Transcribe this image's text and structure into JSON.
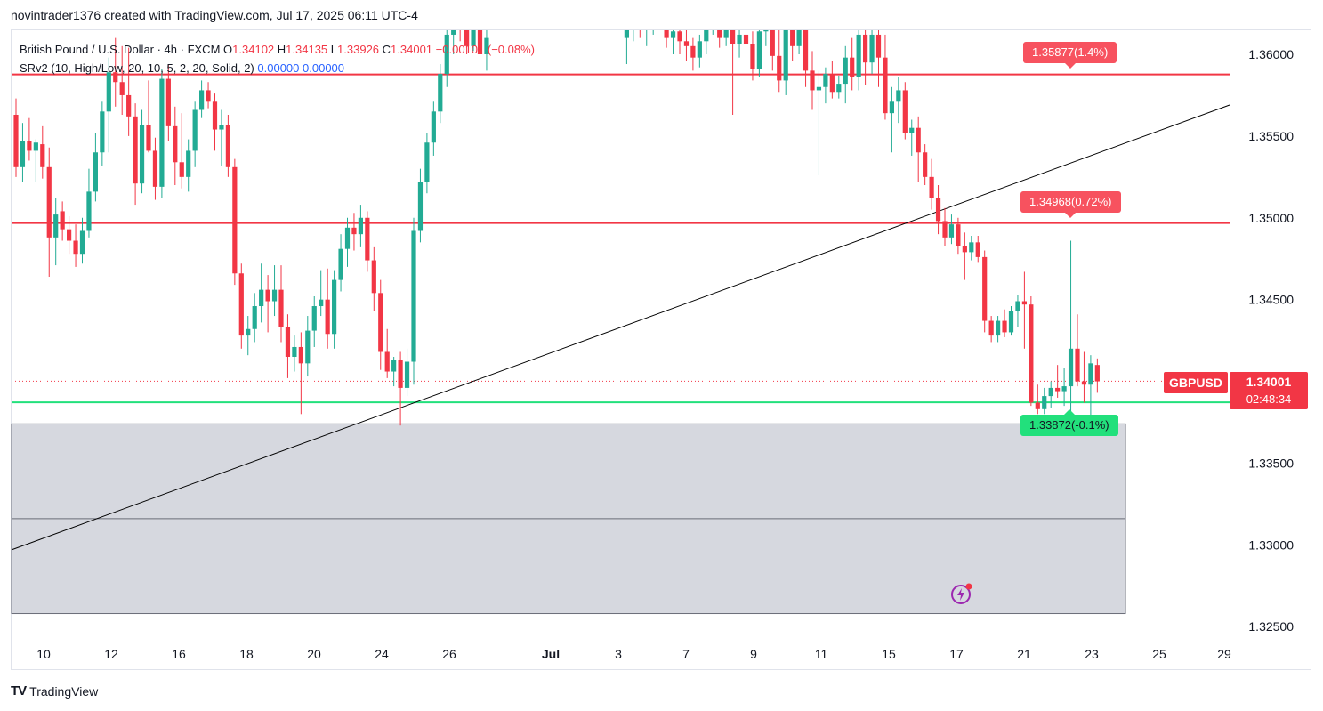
{
  "header": {
    "author_line": "novintrader1376 created with TradingView.com, Jul 17, 2025 06:11 UTC-4"
  },
  "legend": {
    "symbol_line": "British Pound / U.S. Dollar · 4h · FXCM",
    "o_label": "O",
    "o_value": "1.34102",
    "h_label": "H",
    "h_value": "1.34135",
    "l_label": "L",
    "l_value": "1.33926",
    "c_label": "C",
    "c_value": "1.34001",
    "change": "−0.00101 (−0.08%)",
    "indicator_name": "SRv2 (10, High/Low, 20, 10, 5, 2, 20, Solid, 2)",
    "indicator_val1": "0.00000",
    "indicator_val2": "0.00000"
  },
  "tags": {
    "upper": "1.35877(1.4%)",
    "middle": "1.34968(0.72%)",
    "lower": "1.33872(-0.1%)"
  },
  "symbol_tag": "GBPUSD",
  "price_tag": {
    "price": "1.34001",
    "countdown": "02:48:34"
  },
  "footer": {
    "brand": "TradingView",
    "mark": "TV"
  },
  "icons": {
    "alert": "lightning-alert-icon"
  },
  "colors": {
    "up": "#22ab94",
    "down": "#f23645",
    "resistance": "#f23645",
    "support": "#22e07c",
    "trendline": "#000000",
    "zone": "#d1d4dc"
  },
  "chart_data": {
    "type": "candlestick",
    "title": "British Pound / U.S. Dollar · 4h · FXCM",
    "ylim": [
      1.3225,
      1.3616
    ],
    "x_ticks": [
      "10",
      "12",
      "16",
      "18",
      "20",
      "24",
      "26",
      "Jul",
      "3",
      "7",
      "9",
      "11",
      "15",
      "17",
      "21",
      "23",
      "25",
      "29"
    ],
    "y_ticks": [
      "1.36000",
      "1.35500",
      "1.35000",
      "1.34500",
      "1.34000",
      "1.33500",
      "1.33000",
      "1.32500"
    ],
    "horizontal_levels": [
      {
        "price": 1.35877,
        "label": "1.35877(1.4%)",
        "color": "#f23645"
      },
      {
        "price": 1.34968,
        "label": "1.34968(0.72%)",
        "color": "#f23645"
      },
      {
        "price": 1.33872,
        "label": "1.33872(-0.1%)",
        "color": "#22e07c"
      }
    ],
    "zone": {
      "top": 1.3374,
      "bottom": 1.3258
    },
    "trendline": {
      "from": {
        "x": "Jun 9",
        "price": 1.3297
      },
      "to": {
        "x": "Jul 18",
        "price": 1.3569
      }
    },
    "last_price": 1.34001,
    "current_price_line": 1.34001,
    "candles": [
      {
        "o": 1.3563,
        "h": 1.3573,
        "l": 1.3525,
        "c": 1.3531
      },
      {
        "o": 1.3531,
        "h": 1.3558,
        "l": 1.3522,
        "c": 1.3547
      },
      {
        "o": 1.3547,
        "h": 1.3561,
        "l": 1.3535,
        "c": 1.3541
      },
      {
        "o": 1.3541,
        "h": 1.3548,
        "l": 1.3522,
        "c": 1.3546
      },
      {
        "o": 1.3545,
        "h": 1.3556,
        "l": 1.3524,
        "c": 1.3531
      },
      {
        "o": 1.3531,
        "h": 1.3543,
        "l": 1.3464,
        "c": 1.3488
      },
      {
        "o": 1.3488,
        "h": 1.3512,
        "l": 1.3471,
        "c": 1.3502
      },
      {
        "o": 1.3504,
        "h": 1.351,
        "l": 1.3486,
        "c": 1.3493
      },
      {
        "o": 1.3493,
        "h": 1.3501,
        "l": 1.3478,
        "c": 1.3486
      },
      {
        "o": 1.3486,
        "h": 1.3496,
        "l": 1.347,
        "c": 1.3478
      },
      {
        "o": 1.3478,
        "h": 1.35,
        "l": 1.3472,
        "c": 1.3492
      },
      {
        "o": 1.3492,
        "h": 1.353,
        "l": 1.3488,
        "c": 1.3516
      },
      {
        "o": 1.3516,
        "h": 1.3552,
        "l": 1.351,
        "c": 1.354
      },
      {
        "o": 1.354,
        "h": 1.3571,
        "l": 1.3532,
        "c": 1.3565
      },
      {
        "o": 1.3565,
        "h": 1.3598,
        "l": 1.354,
        "c": 1.3589
      },
      {
        "o": 1.3589,
        "h": 1.361,
        "l": 1.3568,
        "c": 1.3583
      },
      {
        "o": 1.3583,
        "h": 1.3605,
        "l": 1.3563,
        "c": 1.3575
      },
      {
        "o": 1.3575,
        "h": 1.3604,
        "l": 1.355,
        "c": 1.3562
      },
      {
        "o": 1.3562,
        "h": 1.357,
        "l": 1.3508,
        "c": 1.3521
      },
      {
        "o": 1.3521,
        "h": 1.3566,
        "l": 1.3515,
        "c": 1.3557
      },
      {
        "o": 1.3557,
        "h": 1.3584,
        "l": 1.354,
        "c": 1.3541
      },
      {
        "o": 1.3541,
        "h": 1.3549,
        "l": 1.3511,
        "c": 1.3519
      },
      {
        "o": 1.3519,
        "h": 1.3591,
        "l": 1.3512,
        "c": 1.3585
      },
      {
        "o": 1.3585,
        "h": 1.3594,
        "l": 1.3547,
        "c": 1.3556
      },
      {
        "o": 1.3556,
        "h": 1.3568,
        "l": 1.352,
        "c": 1.3534
      },
      {
        "o": 1.3534,
        "h": 1.3564,
        "l": 1.3518,
        "c": 1.3525
      },
      {
        "o": 1.3525,
        "h": 1.3548,
        "l": 1.3516,
        "c": 1.3541
      },
      {
        "o": 1.3541,
        "h": 1.3571,
        "l": 1.3531,
        "c": 1.3566
      },
      {
        "o": 1.3566,
        "h": 1.3584,
        "l": 1.3561,
        "c": 1.3578
      },
      {
        "o": 1.3578,
        "h": 1.3583,
        "l": 1.3567,
        "c": 1.3571
      },
      {
        "o": 1.3571,
        "h": 1.3576,
        "l": 1.3541,
        "c": 1.3554
      },
      {
        "o": 1.3554,
        "h": 1.3566,
        "l": 1.3532,
        "c": 1.3557
      },
      {
        "o": 1.3557,
        "h": 1.3563,
        "l": 1.3525,
        "c": 1.3531
      },
      {
        "o": 1.3531,
        "h": 1.3536,
        "l": 1.3459,
        "c": 1.3466
      },
      {
        "o": 1.3466,
        "h": 1.3472,
        "l": 1.342,
        "c": 1.3428
      },
      {
        "o": 1.3428,
        "h": 1.344,
        "l": 1.3416,
        "c": 1.3432
      },
      {
        "o": 1.3432,
        "h": 1.3454,
        "l": 1.3424,
        "c": 1.3446
      },
      {
        "o": 1.3446,
        "h": 1.3472,
        "l": 1.3436,
        "c": 1.3456
      },
      {
        "o": 1.3456,
        "h": 1.3465,
        "l": 1.343,
        "c": 1.3449
      },
      {
        "o": 1.3449,
        "h": 1.3471,
        "l": 1.344,
        "c": 1.3456
      },
      {
        "o": 1.3456,
        "h": 1.3471,
        "l": 1.3424,
        "c": 1.3433
      },
      {
        "o": 1.3433,
        "h": 1.3441,
        "l": 1.3402,
        "c": 1.3415
      },
      {
        "o": 1.3415,
        "h": 1.3428,
        "l": 1.3406,
        "c": 1.3421
      },
      {
        "o": 1.3421,
        "h": 1.343,
        "l": 1.338,
        "c": 1.3411
      },
      {
        "o": 1.3411,
        "h": 1.344,
        "l": 1.3403,
        "c": 1.3431
      },
      {
        "o": 1.3431,
        "h": 1.3452,
        "l": 1.3421,
        "c": 1.3446
      },
      {
        "o": 1.3446,
        "h": 1.3468,
        "l": 1.344,
        "c": 1.345
      },
      {
        "o": 1.345,
        "h": 1.3469,
        "l": 1.342,
        "c": 1.3429
      },
      {
        "o": 1.3429,
        "h": 1.3468,
        "l": 1.342,
        "c": 1.3462
      },
      {
        "o": 1.3462,
        "h": 1.349,
        "l": 1.3455,
        "c": 1.3481
      },
      {
        "o": 1.3481,
        "h": 1.35,
        "l": 1.347,
        "c": 1.3494
      },
      {
        "o": 1.3494,
        "h": 1.3503,
        "l": 1.348,
        "c": 1.349
      },
      {
        "o": 1.349,
        "h": 1.3508,
        "l": 1.3482,
        "c": 1.35
      },
      {
        "o": 1.35,
        "h": 1.3504,
        "l": 1.3467,
        "c": 1.3474
      },
      {
        "o": 1.3474,
        "h": 1.3482,
        "l": 1.3443,
        "c": 1.3454
      },
      {
        "o": 1.3454,
        "h": 1.3462,
        "l": 1.3407,
        "c": 1.3418
      },
      {
        "o": 1.3418,
        "h": 1.3432,
        "l": 1.3402,
        "c": 1.3406
      },
      {
        "o": 1.3406,
        "h": 1.3415,
        "l": 1.3397,
        "c": 1.3413
      },
      {
        "o": 1.3413,
        "h": 1.3418,
        "l": 1.3373,
        "c": 1.3396
      },
      {
        "o": 1.3396,
        "h": 1.342,
        "l": 1.3391,
        "c": 1.3412
      },
      {
        "o": 1.3412,
        "h": 1.35,
        "l": 1.3398,
        "c": 1.3492
      },
      {
        "o": 1.3492,
        "h": 1.353,
        "l": 1.3485,
        "c": 1.3522
      },
      {
        "o": 1.3522,
        "h": 1.3552,
        "l": 1.3515,
        "c": 1.3546
      },
      {
        "o": 1.3546,
        "h": 1.3571,
        "l": 1.3538,
        "c": 1.3565
      },
      {
        "o": 1.3565,
        "h": 1.3594,
        "l": 1.3558,
        "c": 1.3588
      },
      {
        "o": 1.3588,
        "h": 1.362,
        "l": 1.358,
        "c": 1.3612
      },
      {
        "o": 1.3612,
        "h": 1.3625,
        "l": 1.36,
        "c": 1.362
      },
      {
        "o": 1.362,
        "h": 1.3626,
        "l": 1.3608,
        "c": 1.3615
      },
      {
        "o": 1.3615,
        "h": 1.3625,
        "l": 1.36,
        "c": 1.3605
      },
      {
        "o": 1.3605,
        "h": 1.3628,
        "l": 1.3602,
        "c": 1.362
      },
      {
        "o": 1.362,
        "h": 1.3627,
        "l": 1.359,
        "c": 1.36
      },
      {
        "o": 1.36,
        "h": 1.3615,
        "l": 1.359,
        "c": 1.361
      },
      {
        "o": 1.361,
        "h": 1.362,
        "l": 1.3594,
        "c": 1.3616
      },
      {
        "o": 1.3616,
        "h": 1.363,
        "l": 1.3608,
        "c": 1.3628
      },
      {
        "o": 1.3628,
        "h": 1.364,
        "l": 1.361,
        "c": 1.3615
      },
      {
        "o": 1.3615,
        "h": 1.3628,
        "l": 1.3605,
        "c": 1.362
      },
      {
        "o": 1.362,
        "h": 1.3635,
        "l": 1.3612,
        "c": 1.363
      },
      {
        "o": 1.363,
        "h": 1.364,
        "l": 1.362,
        "c": 1.3625
      },
      {
        "o": 1.3625,
        "h": 1.3632,
        "l": 1.3604,
        "c": 1.361
      },
      {
        "o": 1.361,
        "h": 1.3618,
        "l": 1.36,
        "c": 1.3614
      },
      {
        "o": 1.3614,
        "h": 1.362,
        "l": 1.36,
        "c": 1.3608
      },
      {
        "o": 1.3608,
        "h": 1.3615,
        "l": 1.3596,
        "c": 1.3605
      },
      {
        "o": 1.3605,
        "h": 1.361,
        "l": 1.359,
        "c": 1.3598
      },
      {
        "o": 1.3598,
        "h": 1.3612,
        "l": 1.3592,
        "c": 1.3608
      },
      {
        "o": 1.3608,
        "h": 1.362,
        "l": 1.36,
        "c": 1.3615
      },
      {
        "o": 1.3615,
        "h": 1.3625,
        "l": 1.3612,
        "c": 1.3618
      },
      {
        "o": 1.3618,
        "h": 1.3622,
        "l": 1.3604,
        "c": 1.361
      },
      {
        "o": 1.361,
        "h": 1.3625,
        "l": 1.3605,
        "c": 1.3618
      },
      {
        "o": 1.3618,
        "h": 1.3624,
        "l": 1.3563,
        "c": 1.3606
      },
      {
        "o": 1.3606,
        "h": 1.362,
        "l": 1.3598,
        "c": 1.3612
      },
      {
        "o": 1.3612,
        "h": 1.3618,
        "l": 1.36,
        "c": 1.3606
      },
      {
        "o": 1.3606,
        "h": 1.3614,
        "l": 1.3584,
        "c": 1.3591
      },
      {
        "o": 1.3591,
        "h": 1.362,
        "l": 1.3586,
        "c": 1.3614
      },
      {
        "o": 1.3614,
        "h": 1.3622,
        "l": 1.3605,
        "c": 1.3616
      },
      {
        "o": 1.3616,
        "h": 1.3625,
        "l": 1.359,
        "c": 1.3599
      },
      {
        "o": 1.3599,
        "h": 1.362,
        "l": 1.3577,
        "c": 1.3584
      },
      {
        "o": 1.3584,
        "h": 1.363,
        "l": 1.3575,
        "c": 1.362
      },
      {
        "o": 1.362,
        "h": 1.3628,
        "l": 1.3596,
        "c": 1.3605
      },
      {
        "o": 1.3605,
        "h": 1.3625,
        "l": 1.36,
        "c": 1.3618
      },
      {
        "o": 1.3618,
        "h": 1.3624,
        "l": 1.358,
        "c": 1.359
      },
      {
        "o": 1.359,
        "h": 1.3602,
        "l": 1.3566,
        "c": 1.3578
      },
      {
        "o": 1.3578,
        "h": 1.359,
        "l": 1.3526,
        "c": 1.358
      },
      {
        "o": 1.358,
        "h": 1.3592,
        "l": 1.357,
        "c": 1.3588
      },
      {
        "o": 1.3588,
        "h": 1.3596,
        "l": 1.3573,
        "c": 1.3577
      },
      {
        "o": 1.3577,
        "h": 1.3587,
        "l": 1.3573,
        "c": 1.3582
      },
      {
        "o": 1.3582,
        "h": 1.3605,
        "l": 1.357,
        "c": 1.3598
      },
      {
        "o": 1.3598,
        "h": 1.361,
        "l": 1.3578,
        "c": 1.3586
      },
      {
        "o": 1.3586,
        "h": 1.362,
        "l": 1.3578,
        "c": 1.3612
      },
      {
        "o": 1.3612,
        "h": 1.3618,
        "l": 1.3581,
        "c": 1.3595
      },
      {
        "o": 1.3595,
        "h": 1.3618,
        "l": 1.3588,
        "c": 1.3612
      },
      {
        "o": 1.3612,
        "h": 1.362,
        "l": 1.358,
        "c": 1.3598
      },
      {
        "o": 1.3598,
        "h": 1.3612,
        "l": 1.356,
        "c": 1.3564
      },
      {
        "o": 1.3564,
        "h": 1.358,
        "l": 1.354,
        "c": 1.3571
      },
      {
        "o": 1.3571,
        "h": 1.3586,
        "l": 1.3558,
        "c": 1.3578
      },
      {
        "o": 1.3578,
        "h": 1.3583,
        "l": 1.3548,
        "c": 1.3552
      },
      {
        "o": 1.3552,
        "h": 1.356,
        "l": 1.3538,
        "c": 1.3555
      },
      {
        "o": 1.3555,
        "h": 1.3562,
        "l": 1.3522,
        "c": 1.354
      },
      {
        "o": 1.354,
        "h": 1.3545,
        "l": 1.352,
        "c": 1.3525
      },
      {
        "o": 1.3525,
        "h": 1.3536,
        "l": 1.3505,
        "c": 1.3512
      },
      {
        "o": 1.3512,
        "h": 1.352,
        "l": 1.349,
        "c": 1.3498
      },
      {
        "o": 1.3498,
        "h": 1.3506,
        "l": 1.3483,
        "c": 1.3488
      },
      {
        "o": 1.3488,
        "h": 1.3502,
        "l": 1.3484,
        "c": 1.3496
      },
      {
        "o": 1.3496,
        "h": 1.35,
        "l": 1.3478,
        "c": 1.3483
      },
      {
        "o": 1.3483,
        "h": 1.3491,
        "l": 1.3462,
        "c": 1.3479
      },
      {
        "o": 1.3479,
        "h": 1.3489,
        "l": 1.3474,
        "c": 1.3485
      },
      {
        "o": 1.3485,
        "h": 1.3489,
        "l": 1.3473,
        "c": 1.3476
      },
      {
        "o": 1.3476,
        "h": 1.348,
        "l": 1.343,
        "c": 1.3437
      },
      {
        "o": 1.3437,
        "h": 1.344,
        "l": 1.3424,
        "c": 1.3428
      },
      {
        "o": 1.3428,
        "h": 1.344,
        "l": 1.3424,
        "c": 1.3437
      },
      {
        "o": 1.3437,
        "h": 1.3444,
        "l": 1.3427,
        "c": 1.343
      },
      {
        "o": 1.343,
        "h": 1.3446,
        "l": 1.3428,
        "c": 1.3443
      },
      {
        "o": 1.3443,
        "h": 1.3453,
        "l": 1.3433,
        "c": 1.3449
      },
      {
        "o": 1.3449,
        "h": 1.3467,
        "l": 1.342,
        "c": 1.3447
      },
      {
        "o": 1.3447,
        "h": 1.3452,
        "l": 1.3385,
        "c": 1.3387
      },
      {
        "o": 1.3387,
        "h": 1.3398,
        "l": 1.338,
        "c": 1.3383
      },
      {
        "o": 1.3383,
        "h": 1.3396,
        "l": 1.338,
        "c": 1.3391
      },
      {
        "o": 1.3391,
        "h": 1.34,
        "l": 1.3384,
        "c": 1.3396
      },
      {
        "o": 1.3396,
        "h": 1.341,
        "l": 1.339,
        "c": 1.3394
      },
      {
        "o": 1.3394,
        "h": 1.3408,
        "l": 1.3385,
        "c": 1.3397
      },
      {
        "o": 1.3397,
        "h": 1.3486,
        "l": 1.3368,
        "c": 1.342
      },
      {
        "o": 1.342,
        "h": 1.3441,
        "l": 1.3397,
        "c": 1.34
      },
      {
        "o": 1.34,
        "h": 1.3418,
        "l": 1.3387,
        "c": 1.3398
      },
      {
        "o": 1.3398,
        "h": 1.3416,
        "l": 1.3375,
        "c": 1.3411
      },
      {
        "o": 1.341,
        "h": 1.3414,
        "l": 1.3393,
        "c": 1.34
      }
    ]
  }
}
